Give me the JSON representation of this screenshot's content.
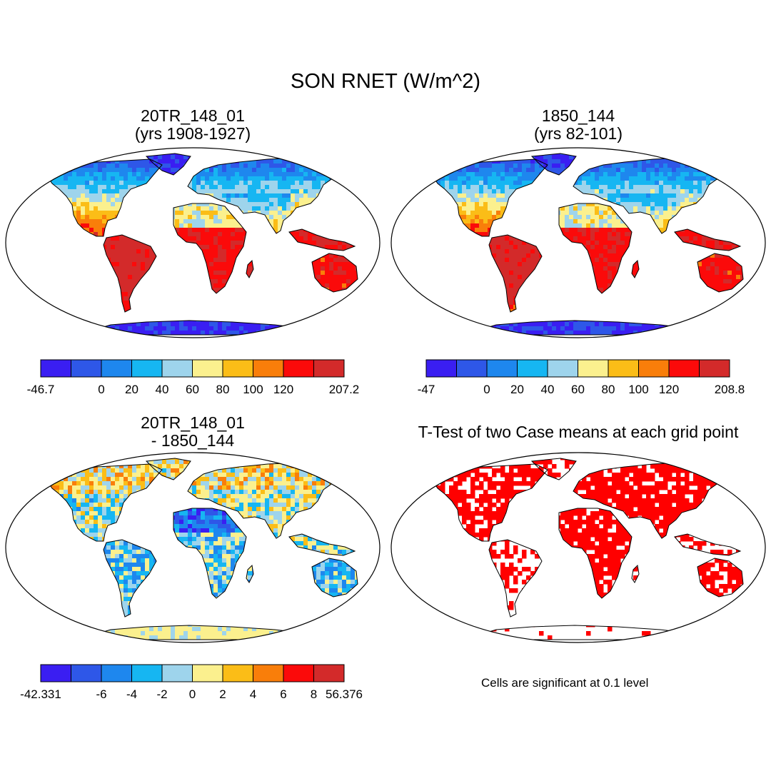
{
  "title": "SON RNET (W/m^2)",
  "colors": {
    "palette": [
      "#3a1ef2",
      "#2e57e8",
      "#1e87ee",
      "#16b6f2",
      "#9ed4ec",
      "#fbf08e",
      "#fbbd17",
      "#f97e0a",
      "#fb0a0a",
      "#d32a2a"
    ],
    "significance": "#ff0000",
    "outline": "#000000"
  },
  "panels": [
    {
      "id": "case1",
      "title_line1": "20TR_148_01",
      "title_line2": "(yrs 1908-1927)",
      "colorbar": {
        "labels": [
          "-46.7",
          "0",
          "20",
          "40",
          "60",
          "80",
          "100",
          "120",
          "207.2"
        ],
        "label_slots": [
          0,
          2,
          3,
          4,
          5,
          6,
          7,
          8,
          10
        ]
      }
    },
    {
      "id": "case2",
      "title_line1": "1850_144",
      "title_line2": "(yrs 82-101)",
      "colorbar": {
        "labels": [
          "-47",
          "0",
          "20",
          "40",
          "60",
          "80",
          "100",
          "120",
          "208.8"
        ],
        "label_slots": [
          0,
          2,
          3,
          4,
          5,
          6,
          7,
          8,
          10
        ]
      }
    },
    {
      "id": "diff",
      "title_line1": "20TR_148_01",
      "title_line2": "- 1850_144",
      "colorbar": {
        "labels": [
          "-42.331",
          "-6",
          "-4",
          "-2",
          "0",
          "2",
          "4",
          "6",
          "8",
          "56.376"
        ],
        "label_slots": [
          0,
          2,
          3,
          4,
          5,
          6,
          7,
          8,
          9,
          10
        ]
      }
    },
    {
      "id": "ttest",
      "title_line1": "T-Test of two Case means at each grid point",
      "note": "Cells are significant at 0.1 level"
    }
  ],
  "map_icon": "world-map-robinson"
}
